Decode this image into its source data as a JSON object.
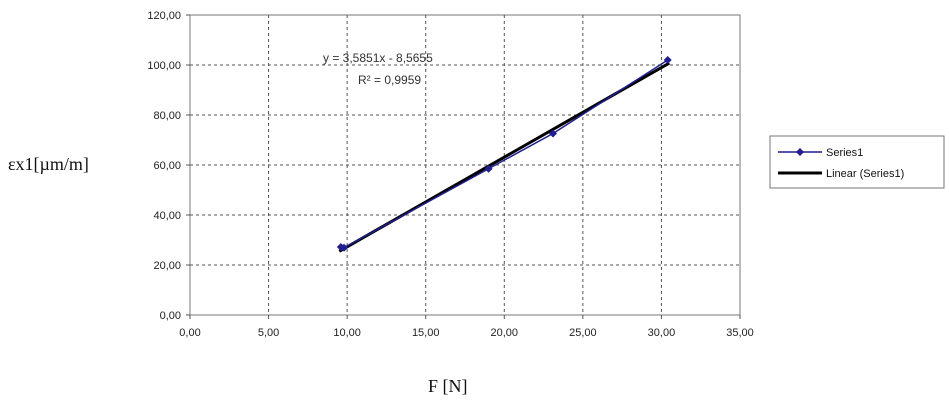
{
  "chart_data": {
    "type": "scatter",
    "xlabel": "F [N]",
    "ylabel": "εx1[µm/m]",
    "xlim": [
      0,
      35
    ],
    "ylim": [
      0,
      120
    ],
    "x_ticks": [
      "0,00",
      "5,00",
      "10,00",
      "15,00",
      "20,00",
      "25,00",
      "30,00",
      "35,00"
    ],
    "y_ticks": [
      "0,00",
      "20,00",
      "40,00",
      "60,00",
      "80,00",
      "100,00",
      "120,00"
    ],
    "grid": true,
    "legend_position": "right",
    "series": [
      {
        "name": "Series1",
        "color": "#1f1f8f",
        "marker": "diamond",
        "x": [
          9.6,
          9.8,
          19.0,
          23.1,
          30.4
        ],
        "y": [
          27.2,
          26.9,
          58.5,
          72.6,
          102.0
        ]
      }
    ],
    "trendline": {
      "name": "Linear (Series1)",
      "color": "#000000",
      "slope": 3.5851,
      "intercept": -8.5655,
      "x_range": [
        9.5,
        30.5
      ],
      "equation": "y = 3,5851x - 8,5655",
      "r_squared": "R² = 0,9959"
    }
  }
}
